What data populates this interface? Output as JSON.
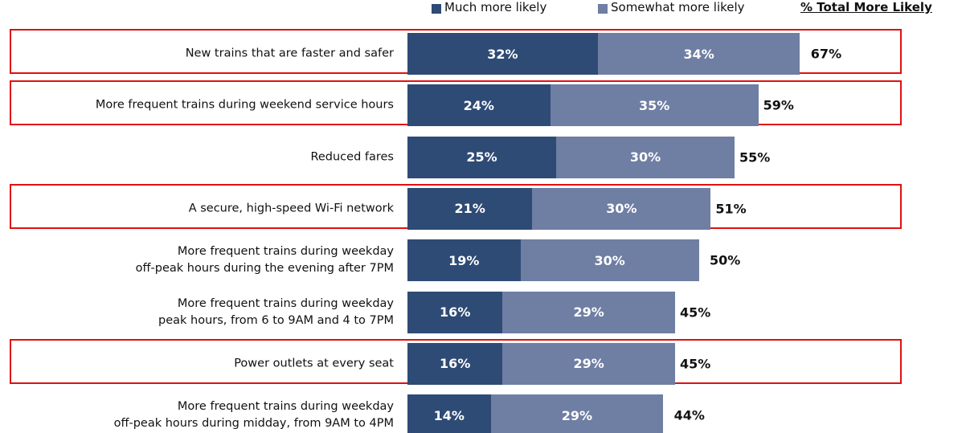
{
  "chart_data": {
    "type": "stacked-barh",
    "categories": [
      "New trains that are faster and safer",
      "More frequent trains during weekend service hours",
      "Reduced fares",
      "A secure, high-speed Wi-Fi network",
      "More frequent trains during weekday\noff-peak hours during the evening after 7PM",
      "More frequent trains during weekday\npeak hours, from 6 to 9AM and 4 to 7PM",
      "Power outlets at every seat",
      "More frequent trains during weekday\noff-peak hours during midday, from 9AM to 4PM"
    ],
    "series": [
      {
        "name": "Much more likely",
        "color": "#2e4b75",
        "values": [
          32,
          24,
          25,
          21,
          19,
          16,
          16,
          14
        ],
        "value_labels": [
          "32%",
          "24%",
          "25%",
          "21%",
          "19%",
          "16%",
          "16%",
          "14%"
        ]
      },
      {
        "name": "Somewhat more likely",
        "color": "#6f7ea3",
        "values": [
          34,
          35,
          30,
          30,
          30,
          29,
          29,
          29
        ],
        "value_labels": [
          "34%",
          "35%",
          "30%",
          "30%",
          "30%",
          "29%",
          "29%",
          "29%"
        ]
      }
    ],
    "totals_title": "% Total More Likely",
    "totals": [
      67,
      59,
      55,
      51,
      50,
      45,
      45,
      44
    ],
    "totals_labels": [
      "67%",
      "59%",
      "55%",
      "51%",
      "50%",
      "45%",
      "45%",
      "44%"
    ],
    "highlighted": [
      true,
      true,
      false,
      true,
      false,
      false,
      true,
      false
    ],
    "highlight_color": "#e01010"
  }
}
